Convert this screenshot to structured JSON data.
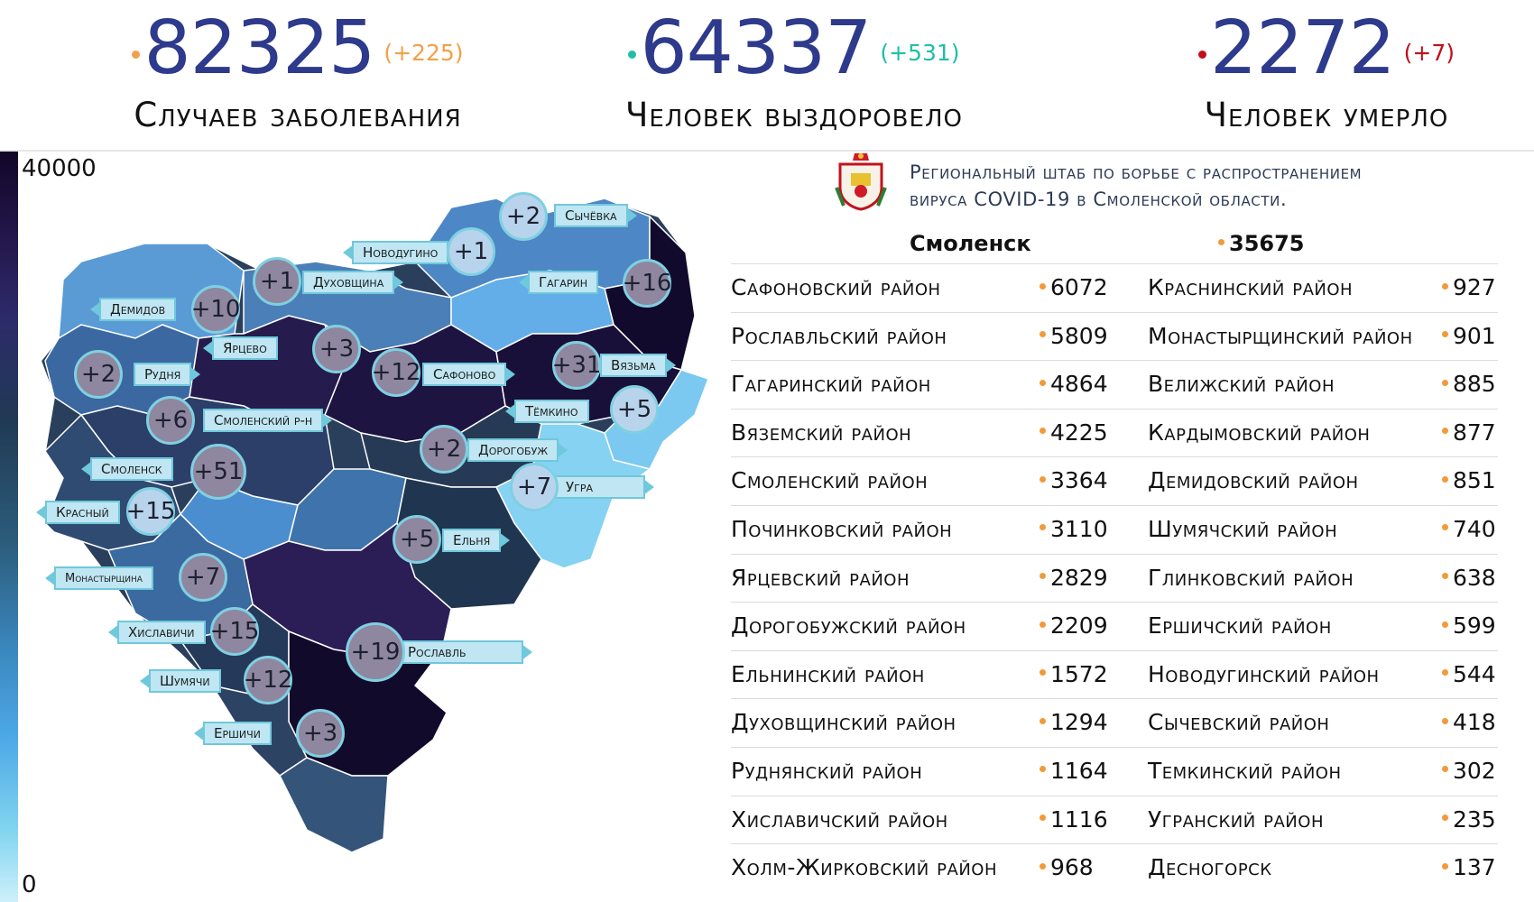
{
  "stats": {
    "cases": {
      "value": "82325",
      "delta": "(+225)",
      "label": "Случаев заболевания",
      "color": "#f1a14a"
    },
    "recovered": {
      "value": "64337",
      "delta": "(+531)",
      "label": "Человек выздоровело",
      "color": "#1fbfa5"
    },
    "deaths": {
      "value": "2272",
      "delta": "(+7)",
      "label": "Человек умерло",
      "color": "#c0101a"
    }
  },
  "legend": {
    "max": "40000",
    "min": "0"
  },
  "org": {
    "line1": "Региональный штаб по борьбе с распространением",
    "line2": "вируса COVID-19 в Смоленской области."
  },
  "city": {
    "name": "Смоленск",
    "value": "35675"
  },
  "districts": [
    {
      "name1": "Сафоновский район",
      "val1": "6072",
      "name2": "Краснинский район",
      "val2": "927"
    },
    {
      "name1": "Рославльский район",
      "val1": "5809",
      "name2": "Монастырщинский район",
      "val2": "901"
    },
    {
      "name1": "Гагаринский район",
      "val1": "4864",
      "name2": "Велижский район",
      "val2": "885"
    },
    {
      "name1": "Вяземский район",
      "val1": "4225",
      "name2": "Кардымовский район",
      "val2": "877"
    },
    {
      "name1": "Смоленский район",
      "val1": "3364",
      "name2": "Демидовский район",
      "val2": "851"
    },
    {
      "name1": "Починковский район",
      "val1": "3110",
      "name2": "Шумячский район",
      "val2": "740"
    },
    {
      "name1": "Ярцевский район",
      "val1": "2829",
      "name2": "Глинковский район",
      "val2": "638"
    },
    {
      "name1": "Дорогобужский район",
      "val1": "2209",
      "name2": "Ершичский район",
      "val2": "599"
    },
    {
      "name1": "Ельнинский район",
      "val1": "1572",
      "name2": "Новодугинский район",
      "val2": "544"
    },
    {
      "name1": "Духовщинский район",
      "val1": "1294",
      "name2": "Сычевский район",
      "val2": "418"
    },
    {
      "name1": "Руднянский район",
      "val1": "1164",
      "name2": "Темкинский район",
      "val2": "302"
    },
    {
      "name1": "Хиславичский район",
      "val1": "1116",
      "name2": "Угранский район",
      "val2": "235"
    },
    {
      "name1": "Холм-Жирковский район",
      "val1": "968",
      "name2": "Десногорск",
      "val2": "137"
    }
  ],
  "map": {
    "sychevka": {
      "delta": "+2",
      "name": "Сычёвка"
    },
    "novodugino": {
      "delta": "+1",
      "name": "Новодугино"
    },
    "dukhovshchina": {
      "delta": "+1",
      "name": "Духовщина"
    },
    "gagarin": {
      "delta": "+16",
      "name": "Гагарин"
    },
    "demidov": {
      "delta": "+10",
      "name": "Демидов"
    },
    "yartsevo": {
      "delta": "+3",
      "name": "Ярцево"
    },
    "rudnya": {
      "delta": "+2",
      "name": "Рудня"
    },
    "safonovo": {
      "delta": "+12",
      "name": "Сафоново"
    },
    "vyazma": {
      "delta": "+31",
      "name": "Вязьма"
    },
    "temkino": {
      "delta": "+5",
      "name": "Тёмкино"
    },
    "smolensk_rn": {
      "delta": "+6",
      "name": "Смоленский р-н"
    },
    "dorogobuzh": {
      "delta": "+2",
      "name": "Дорогобуж"
    },
    "smolensk": {
      "delta": "+51",
      "name": "Смоленск"
    },
    "ugra": {
      "delta": "+7",
      "name": "Угра"
    },
    "krasny": {
      "delta": "+15",
      "name": "Красный"
    },
    "yelnya": {
      "delta": "+5",
      "name": "Ельня"
    },
    "monastyrshchina": {
      "delta": "+7",
      "name": "Монастырщина"
    },
    "khislavichi": {
      "delta": "+15",
      "name": "Хиславичи"
    },
    "roslavl": {
      "delta": "+19",
      "name": "Рославль"
    },
    "shumyachi": {
      "delta": "+12",
      "name": "Шумячи"
    },
    "ershichi": {
      "delta": "+3",
      "name": "Ершичи"
    }
  }
}
